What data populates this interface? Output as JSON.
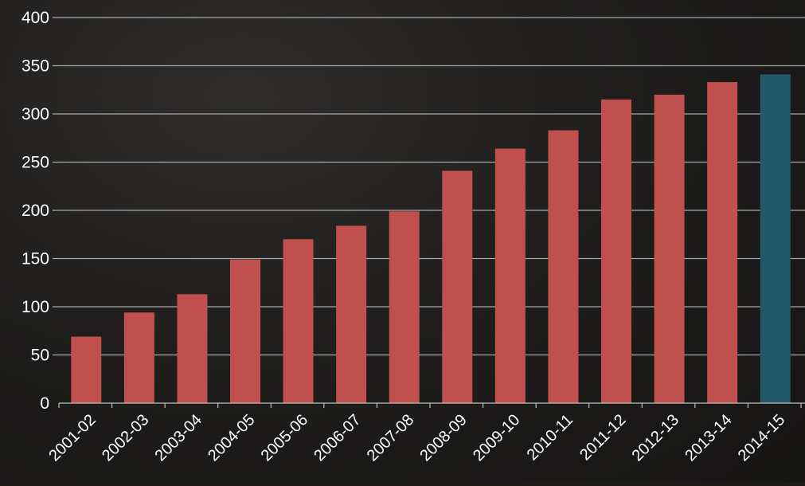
{
  "chart_data": {
    "type": "bar",
    "title": "",
    "xlabel": "",
    "ylabel": "",
    "categories": [
      "2001-02",
      "2002-03",
      "2003-04",
      "2004-05",
      "2005-06",
      "2006-07",
      "2007-08",
      "2008-09",
      "2009-10",
      "2010-11",
      "2011-12",
      "2012-13",
      "2013-14",
      "2014-15"
    ],
    "values": [
      69,
      94,
      113,
      149,
      170,
      184,
      199,
      241,
      264,
      283,
      315,
      320,
      333,
      341
    ],
    "bar_colors": [
      "#c0504d",
      "#c0504d",
      "#c0504d",
      "#c0504d",
      "#c0504d",
      "#c0504d",
      "#c0504d",
      "#c0504d",
      "#c0504d",
      "#c0504d",
      "#c0504d",
      "#c0504d",
      "#c0504d",
      "#215968"
    ],
    "ylim": [
      0,
      400
    ],
    "yticks": [
      0,
      50,
      100,
      150,
      200,
      250,
      300,
      350,
      400
    ],
    "grid": true,
    "legend": "none",
    "colors": {
      "background": "#1b1a19",
      "grid": "#bfbfbf",
      "text": "#ffffff",
      "bar": "#c0504d",
      "highlight_bar": "#215968"
    }
  }
}
